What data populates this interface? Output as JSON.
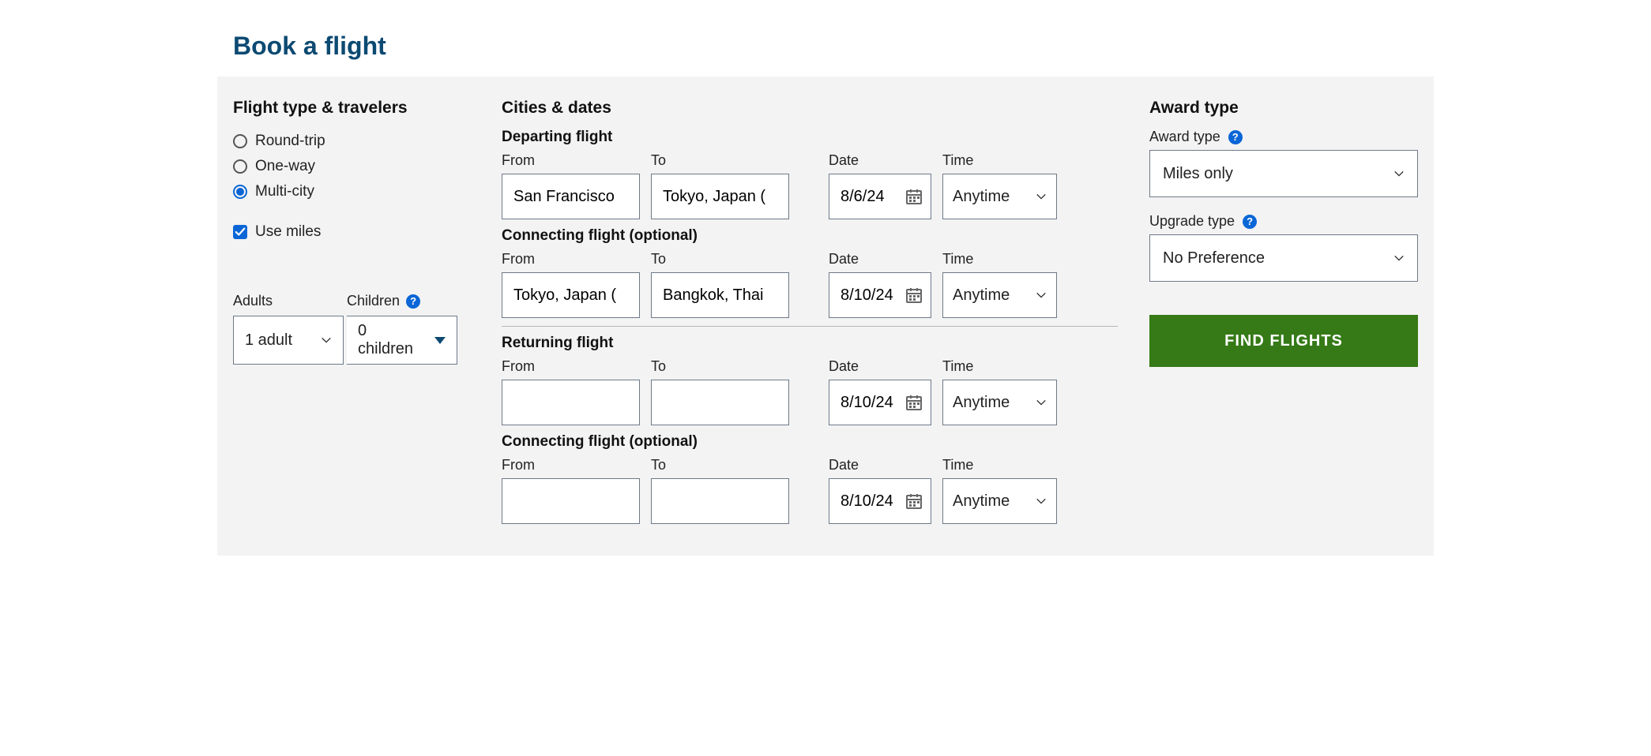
{
  "pageTitle": "Book a flight",
  "colors": {
    "panel_bg": "#f3f3f3",
    "title_color": "#0c4a72",
    "accent_blue": "#0a66d6",
    "border_gray": "#6d7a88",
    "btn_green": "#357a17"
  },
  "flightTypeTravelers": {
    "heading": "Flight type & travelers",
    "tripTypes": {
      "roundTrip": {
        "label": "Round-trip",
        "selected": false
      },
      "oneWay": {
        "label": "One-way",
        "selected": false
      },
      "multiCity": {
        "label": "Multi-city",
        "selected": true
      }
    },
    "useMiles": {
      "label": "Use miles",
      "checked": true
    },
    "adults": {
      "label": "Adults",
      "value": "1 adult"
    },
    "children": {
      "label": "Children",
      "value": "0 children"
    }
  },
  "citiesDates": {
    "heading": "Cities & dates",
    "labels": {
      "from": "From",
      "to": "To",
      "date": "Date",
      "time": "Time"
    },
    "segments": [
      {
        "title": "Departing flight",
        "from": "San Francisco",
        "to": "Tokyo, Japan (",
        "date": "8/6/24",
        "time": "Anytime"
      },
      {
        "title": "Connecting flight (optional)",
        "from": "Tokyo, Japan (",
        "to": "Bangkok, Thai",
        "date": "8/10/24",
        "time": "Anytime",
        "divider_after": true
      },
      {
        "title": "Returning flight",
        "from": "",
        "to": "",
        "date": "8/10/24",
        "time": "Anytime"
      },
      {
        "title": "Connecting flight (optional)",
        "from": "",
        "to": "",
        "date": "8/10/24",
        "time": "Anytime"
      }
    ]
  },
  "awardType": {
    "heading": "Award type",
    "awardLabel": "Award type",
    "awardValue": "Miles only",
    "upgradeLabel": "Upgrade type",
    "upgradeValue": "No Preference"
  },
  "findButton": "FIND FLIGHTS"
}
